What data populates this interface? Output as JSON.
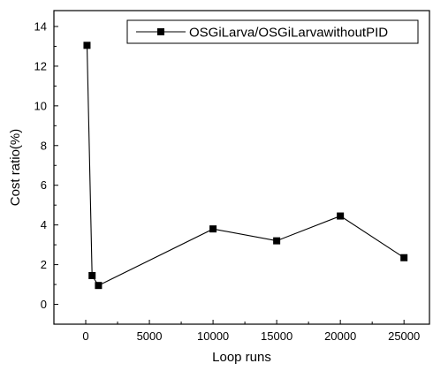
{
  "chart_data": {
    "type": "line",
    "title": "",
    "xlabel": "Loop runs",
    "ylabel": "Cost ratio(%)",
    "xlim": [
      -2500,
      27000
    ],
    "ylim": [
      -1.0,
      14.8
    ],
    "xticks": [
      0,
      5000,
      10000,
      15000,
      20000,
      25000
    ],
    "yticks": [
      0,
      2,
      4,
      6,
      8,
      10,
      12,
      14
    ],
    "grid": false,
    "legend": "top-right",
    "series": [
      {
        "name": "OSGiLarva/OSGiLarvawithoutPID",
        "marker": "square",
        "color": "#000000",
        "x": [
          100,
          500,
          1000,
          10000,
          15000,
          20000,
          25000
        ],
        "y": [
          13.05,
          1.45,
          0.95,
          3.8,
          3.2,
          4.45,
          2.35
        ]
      }
    ]
  }
}
